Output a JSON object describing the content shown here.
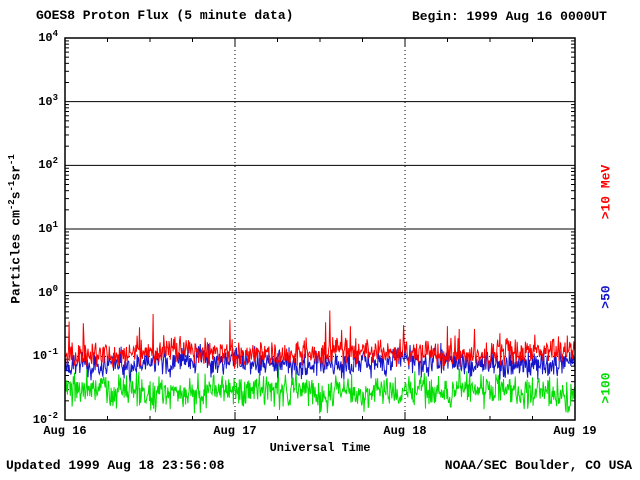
{
  "footer": {
    "updated": "Updated 1999 Aug 18 23:56:08",
    "credit": "NOAA/SEC Boulder, CO USA"
  },
  "chart_data": {
    "type": "line",
    "title": "GOES8 Proton Flux (5 minute data)",
    "begin": "Begin: 1999 Aug 16 0000UT",
    "xlabel": "Universal Time",
    "ylabel": "Particles cm^-2 s^-1 sr^-1",
    "ylabel_parts": [
      {
        "text": "Particles cm"
      },
      {
        "sup": "-2"
      },
      {
        "text": "s"
      },
      {
        "sup": "-1"
      },
      {
        "text": "sr"
      },
      {
        "sup": "-1"
      }
    ],
    "x_ticks": [
      "Aug 16",
      "Aug 17",
      "Aug 18",
      "Aug 19"
    ],
    "y_ticks": [
      "10^4",
      "10^3",
      "10^2",
      "10^1",
      "10^0",
      "10^-1",
      "10^-2"
    ],
    "y_tick_exponents": [
      4,
      3,
      2,
      1,
      0,
      -1,
      -2
    ],
    "ylim_log10": [
      -2,
      4
    ],
    "x_range_days": 3,
    "points_per_day": 288,
    "grid": {
      "h_solid_exponents": [
        3,
        2,
        1,
        0
      ],
      "h_dotted_exponents": [
        -1
      ],
      "v_dotted_days": [
        1,
        2
      ]
    },
    "legend_position": "right",
    "series": [
      {
        "name": ">10 MeV",
        "color": "#ff0000",
        "base_log10": -0.95,
        "noise_sigma_log10": 0.1,
        "spike_prob": 0.06,
        "spike_max_log10": 0.85,
        "seed": 11,
        "approx_range": [
          0.07,
          0.9
        ]
      },
      {
        "name": ">50",
        "color": "#1515cc",
        "base_log10": -1.1,
        "noise_sigma_log10": 0.1,
        "spike_prob": 0.03,
        "spike_max_log10": 0.4,
        "seed": 22,
        "approx_range": [
          0.04,
          0.25
        ]
      },
      {
        "name": ">100",
        "color": "#00dd00",
        "base_log10": -1.55,
        "noise_sigma_log10": 0.13,
        "spike_prob": 0.02,
        "spike_max_log10": 0.35,
        "seed": 33,
        "approx_range": [
          0.012,
          0.08
        ]
      }
    ]
  }
}
